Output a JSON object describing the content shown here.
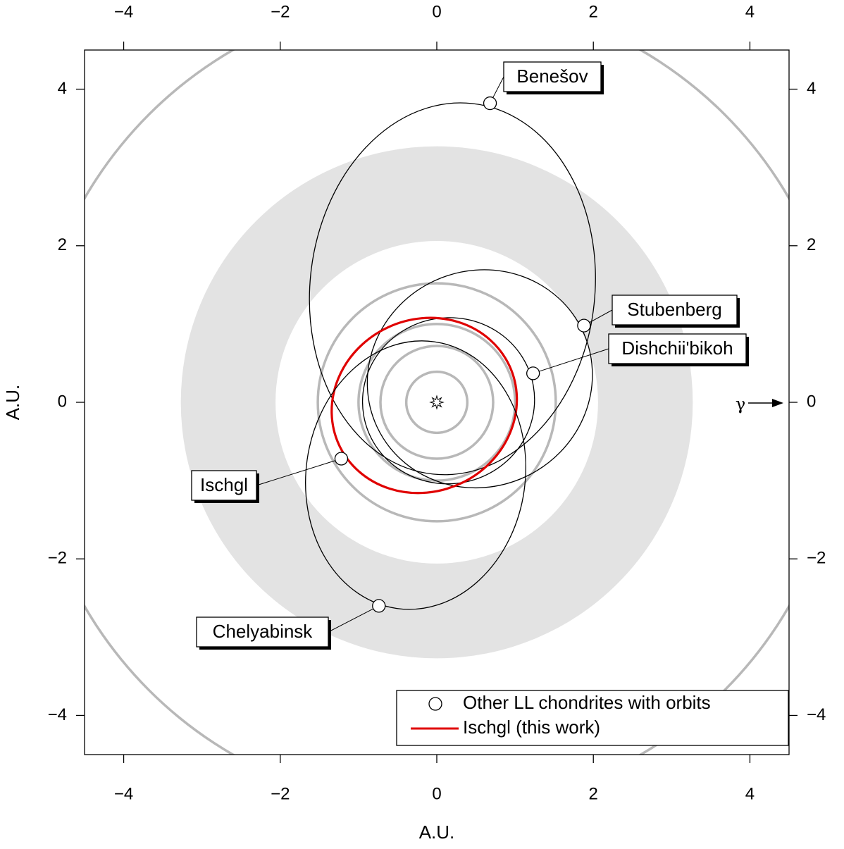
{
  "chart_data": {
    "type": "orbit",
    "xlabel": "A.U.",
    "ylabel": "A.U.",
    "xlim": [
      -4.5,
      4.5
    ],
    "ylim": [
      -4.5,
      4.5
    ],
    "xticks": [
      {
        "value": -4,
        "label": "−4"
      },
      {
        "value": -2,
        "label": "−2"
      },
      0,
      2,
      4
    ],
    "yticks": [
      {
        "value": -4,
        "label": "−4"
      },
      {
        "value": -2,
        "label": "−2"
      },
      0,
      2,
      4
    ],
    "asteroid_belt": {
      "color": "#e3e3e3",
      "inner_radius": 2.06,
      "outer_radius": 3.27
    },
    "planet_orbits": {
      "color": "#b8b8b8",
      "radii": [
        0.39,
        0.72,
        1.0,
        1.52,
        5.2
      ]
    },
    "orbits": [
      {
        "name": "Benešov",
        "color": "#000000",
        "cx": 0.2,
        "cy": 1.45,
        "rx": 1.82,
        "ry": 2.38,
        "angle": -6,
        "x": 0.68,
        "y": 3.82
      },
      {
        "name": "Stubenberg",
        "color": "#000000",
        "cx": 0.55,
        "cy": 0.3,
        "rx": 1.45,
        "ry": 1.38,
        "angle": 25,
        "x": 1.88,
        "y": 0.98
      },
      {
        "name": "Dishchii'bikoh",
        "color": "#000000",
        "cx": 0.15,
        "cy": 0.02,
        "rx": 1.1,
        "ry": 1.06,
        "angle": 10,
        "x": 1.23,
        "y": 0.37
      },
      {
        "name": "Ischgl",
        "color": "#e00000",
        "cx": -0.16,
        "cy": -0.04,
        "rx": 1.2,
        "ry": 1.1,
        "angle": 25,
        "x": -1.22,
        "y": -0.72
      },
      {
        "name": "Chelyabinsk",
        "color": "#000000",
        "cx": -0.27,
        "cy": -0.93,
        "rx": 1.4,
        "ry": 1.72,
        "angle": -8,
        "x": -0.74,
        "y": -2.6
      }
    ],
    "vernal_equinox_label": "γ",
    "legend": {
      "position": "lower right",
      "entries": [
        "Other LL chondrites with orbits",
        "Ischgl (this work)"
      ]
    }
  }
}
